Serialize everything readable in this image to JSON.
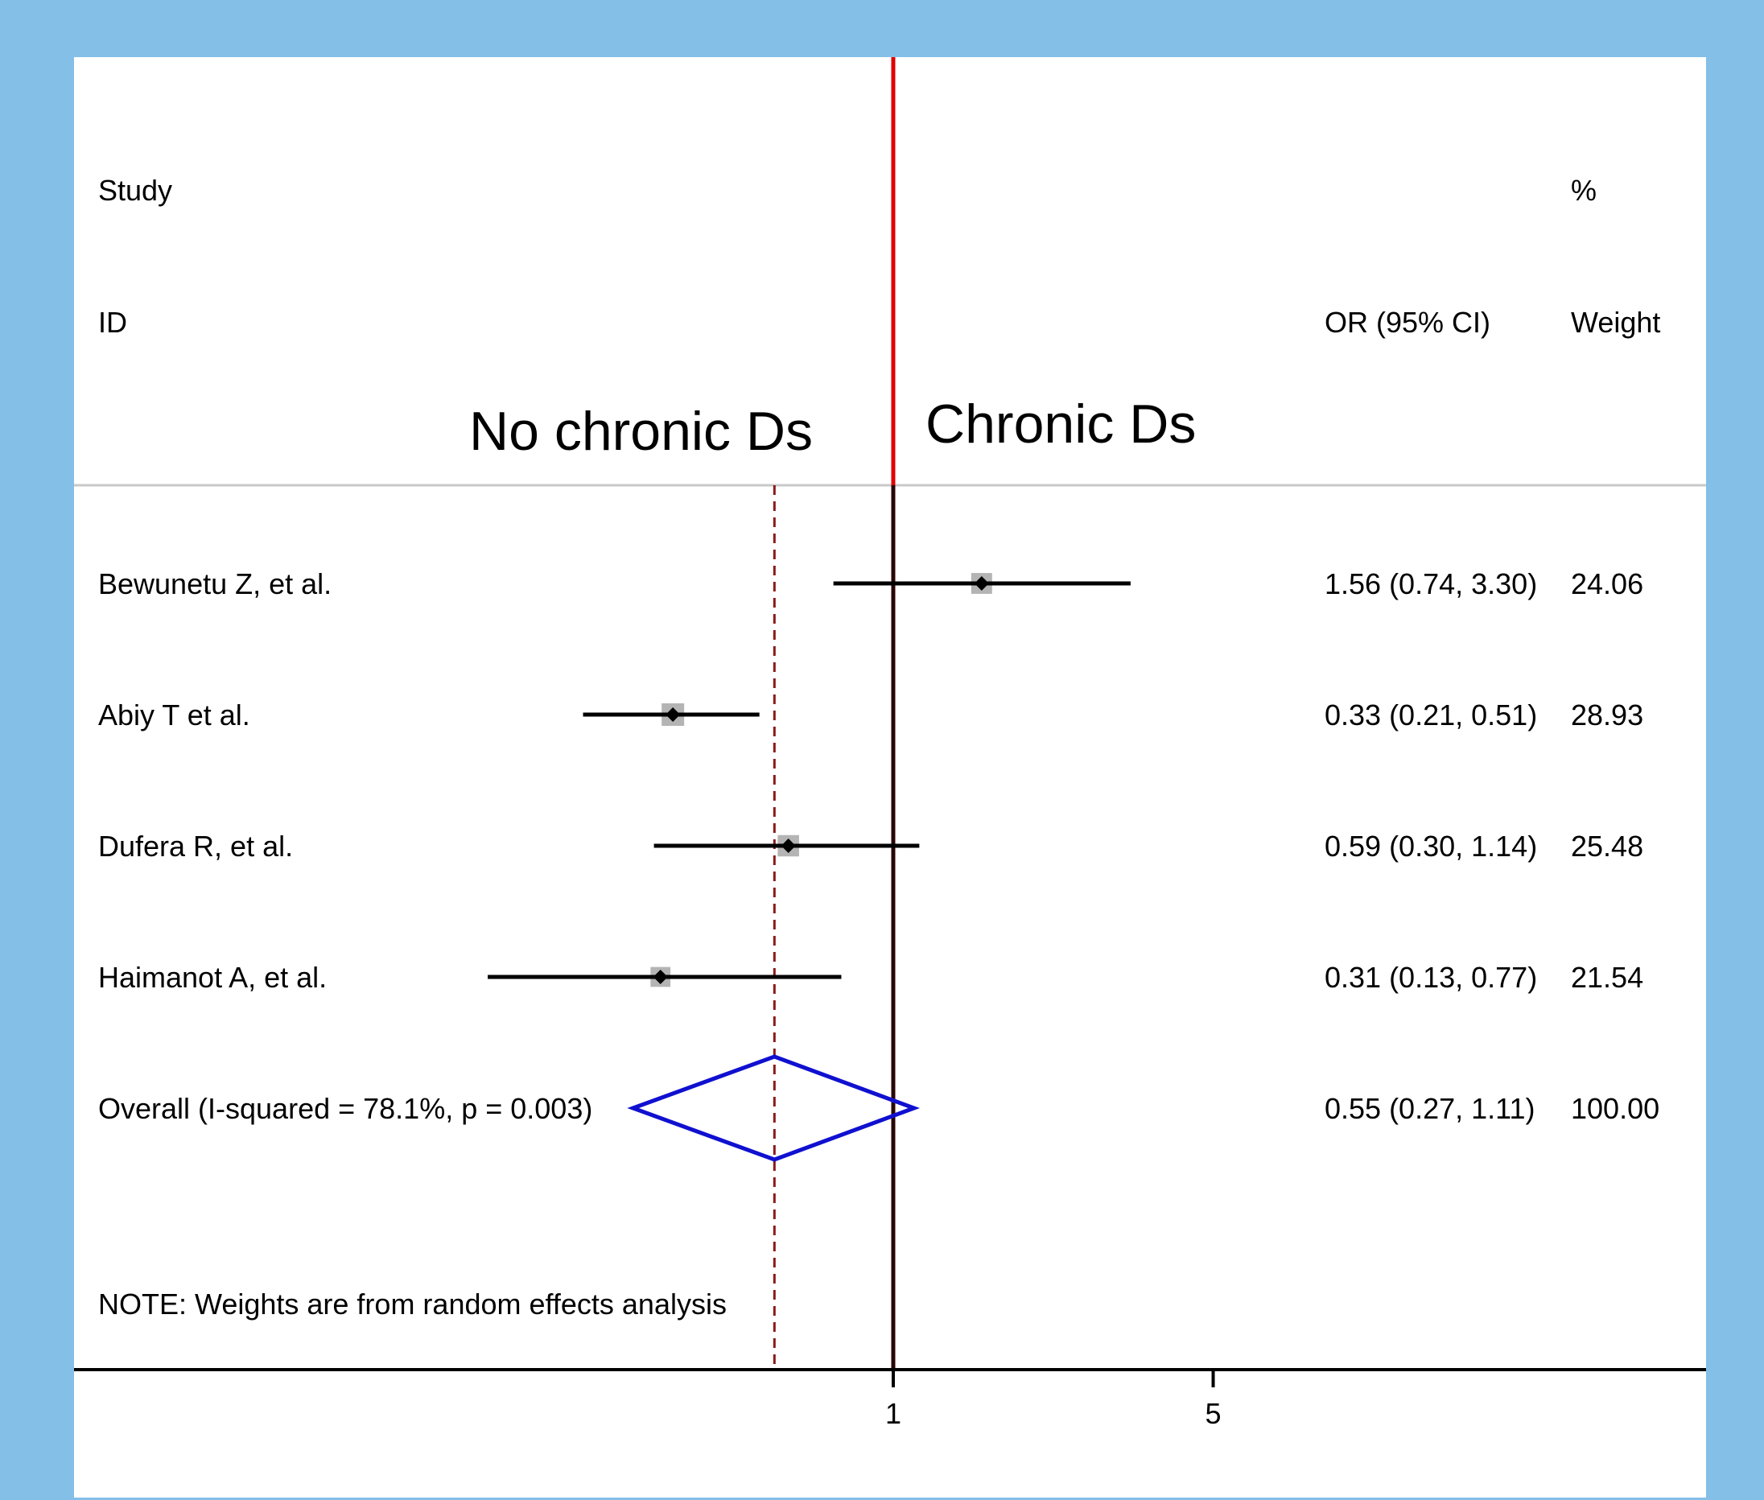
{
  "header": {
    "study_label_line1": "Study",
    "study_label_line2": "ID",
    "weight_label_line1": "%",
    "weight_label_line2": "Weight",
    "estimate_label": "OR (95% CI)",
    "left_annotation": "No chronic Ds",
    "right_annotation": "Chronic Ds"
  },
  "chart_data": {
    "type": "forest",
    "scale": "log",
    "null_value": 1,
    "x_ticks": [
      1,
      5
    ],
    "x_tick_labels": [
      "1",
      "5"
    ],
    "xlim": [
      0.13,
      7.4
    ],
    "studies": [
      {
        "id": "Bewunetu Z, et al.",
        "or": 1.56,
        "lower": 0.74,
        "upper": 3.3,
        "ci_text": "1.56 (0.74, 3.30)",
        "weight": 24.06,
        "weight_text": "24.06"
      },
      {
        "id": "Abiy T et al.",
        "or": 0.33,
        "lower": 0.21,
        "upper": 0.51,
        "ci_text": "0.33 (0.21, 0.51)",
        "weight": 28.93,
        "weight_text": "28.93"
      },
      {
        "id": "Dufera R, et al.",
        "or": 0.59,
        "lower": 0.3,
        "upper": 1.14,
        "ci_text": "0.59 (0.30, 1.14)",
        "weight": 25.48,
        "weight_text": "25.48"
      },
      {
        "id": "Haimanot A, et al.",
        "or": 0.31,
        "lower": 0.13,
        "upper": 0.77,
        "ci_text": "0.31 (0.13, 0.77)",
        "weight": 21.54,
        "weight_text": "21.54"
      }
    ],
    "overall": {
      "label": "Overall  (I-squared = 78.1%, p = 0.003)",
      "or": 0.55,
      "lower": 0.27,
      "upper": 1.11,
      "ci_text": "0.55 (0.27, 1.11)",
      "weight_text": "100.00"
    },
    "note": "NOTE: Weights are from random effects analysis",
    "colors": {
      "frame": "#84BFE8",
      "null_line": "#E00000",
      "overall_line": "#8B1A1A",
      "diamond": "#1010D0",
      "ci_line": "#000000",
      "weight_box": "#B4B4B4",
      "separator": "#C8C8C8"
    }
  }
}
